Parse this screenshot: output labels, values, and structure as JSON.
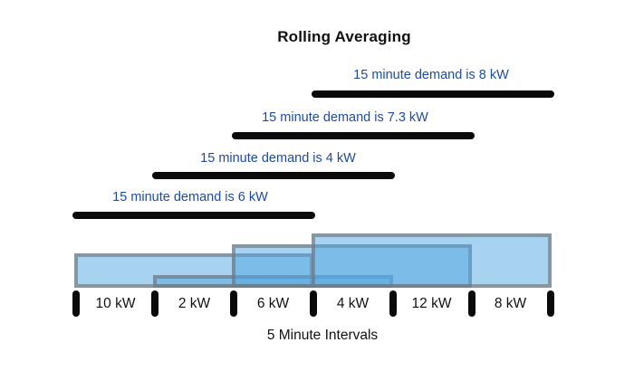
{
  "title": "Rolling Averaging",
  "axis_label": "5 Minute Intervals",
  "windows": [
    {
      "demand_label": "15 minute demand is 8 kW",
      "average_kw": 8
    },
    {
      "demand_label": "15 minute demand is 7.3 kW",
      "average_kw": 7.3
    },
    {
      "demand_label": "15 minute demand is 4 kW",
      "average_kw": 4
    },
    {
      "demand_label": "15 minute demand is 6 kW",
      "average_kw": 6
    }
  ],
  "intervals": [
    {
      "label": "10 kW",
      "value_kw": 10
    },
    {
      "label": "2 kW",
      "value_kw": 2
    },
    {
      "label": "6 kW",
      "value_kw": 6
    },
    {
      "label": "4 kW",
      "value_kw": 4
    },
    {
      "label": "12 kW",
      "value_kw": 12
    },
    {
      "label": "8 kW",
      "value_kw": 8
    }
  ],
  "chart_data": {
    "type": "bar",
    "title": "Rolling Averaging",
    "xlabel": "5 Minute Intervals",
    "categories": [
      "10 kW",
      "2 kW",
      "6 kW",
      "4 kW",
      "12 kW",
      "8 kW"
    ],
    "interval_values_kw": [
      10,
      2,
      6,
      4,
      12,
      8
    ],
    "rolling_windows": [
      {
        "label": "15 minute demand is 6 kW",
        "average_kw": 6,
        "start_interval": 1,
        "end_interval": 3
      },
      {
        "label": "15 minute demand is 4 kW",
        "average_kw": 4,
        "start_interval": 2,
        "end_interval": 4
      },
      {
        "label": "15 minute demand is 7.3 kW",
        "average_kw": 7.3,
        "start_interval": 3,
        "end_interval": 5
      },
      {
        "label": "15 minute demand is 8 kW",
        "average_kw": 8,
        "start_interval": 4,
        "end_interval": 6
      }
    ],
    "legend": "off",
    "grid": "off"
  },
  "colors": {
    "background": "#ffffff",
    "title-text": "#111111",
    "demand-label-blue": "#1c4ba6",
    "bar-black": "#0a0a0a",
    "tick-black": "#0a0a0a",
    "axis-text": "#111111",
    "window-fill": "rgba(80,165,225,0.5)",
    "window-border": "rgba(115,115,115,0.62)"
  }
}
